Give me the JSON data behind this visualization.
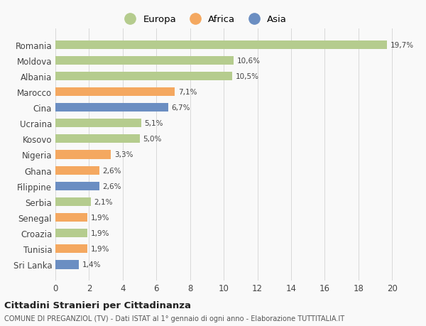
{
  "countries": [
    "Romania",
    "Moldova",
    "Albania",
    "Marocco",
    "Cina",
    "Ucraina",
    "Kosovo",
    "Nigeria",
    "Ghana",
    "Filippine",
    "Serbia",
    "Senegal",
    "Croazia",
    "Tunisia",
    "Sri Lanka"
  ],
  "values": [
    19.7,
    10.6,
    10.5,
    7.1,
    6.7,
    5.1,
    5.0,
    3.3,
    2.6,
    2.6,
    2.1,
    1.9,
    1.9,
    1.9,
    1.4
  ],
  "labels": [
    "19,7%",
    "10,6%",
    "10,5%",
    "7,1%",
    "6,7%",
    "5,1%",
    "5,0%",
    "3,3%",
    "2,6%",
    "2,6%",
    "2,1%",
    "1,9%",
    "1,9%",
    "1,9%",
    "1,4%"
  ],
  "categories": [
    "Europa",
    "Europa",
    "Europa",
    "Africa",
    "Asia",
    "Europa",
    "Europa",
    "Africa",
    "Africa",
    "Asia",
    "Europa",
    "Africa",
    "Europa",
    "Africa",
    "Asia"
  ],
  "colors": {
    "Europa": "#b5cc8e",
    "Africa": "#f4a860",
    "Asia": "#6b8ec2"
  },
  "xlim": [
    0,
    21
  ],
  "xticks": [
    0,
    2,
    4,
    6,
    8,
    10,
    12,
    14,
    16,
    18,
    20
  ],
  "title": "Cittadini Stranieri per Cittadinanza",
  "subtitle": "COMUNE DI PREGANZIOL (TV) - Dati ISTAT al 1° gennaio di ogni anno - Elaborazione TUTTITALIA.IT",
  "background_color": "#f9f9f9",
  "grid_color": "#d8d8d8",
  "bar_height": 0.55
}
